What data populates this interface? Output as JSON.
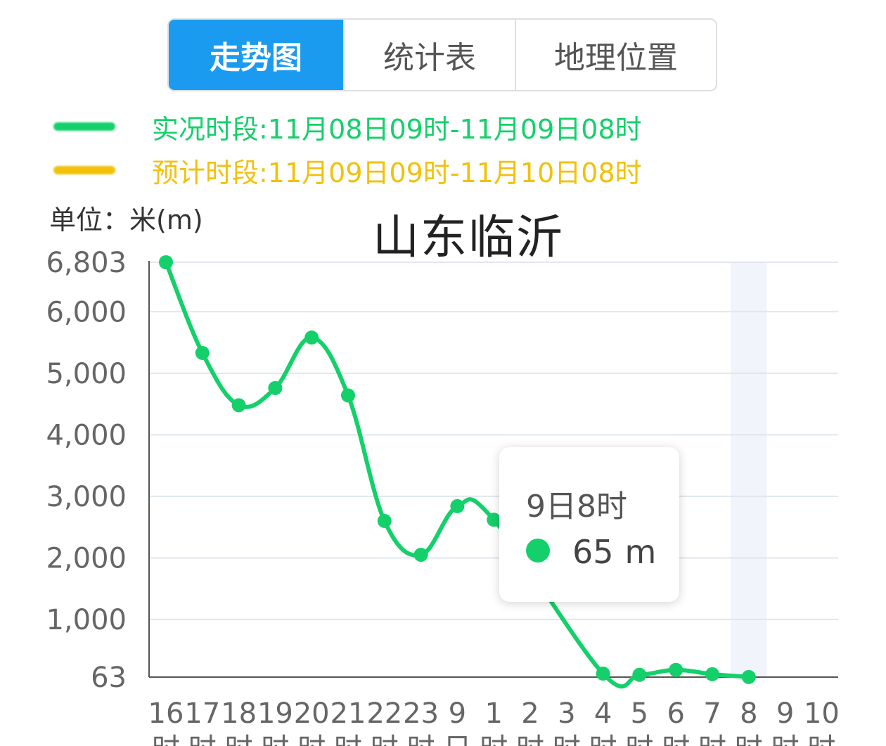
{
  "tabs": [
    {
      "label": "走势图",
      "active": true
    },
    {
      "label": "统计表",
      "active": false
    },
    {
      "label": "地理位置",
      "active": false
    }
  ],
  "legend": {
    "actual": {
      "label": "实况时段:11月08日09时-11月09日08时",
      "color": "#14d06a"
    },
    "forecast": {
      "label": "预计时段:11月09日09时-11月10日08时",
      "color": "#f2c10c"
    }
  },
  "unit_label": "单位：米(m)",
  "tooltip": {
    "time": "9日8时",
    "value": "65",
    "unit": "m"
  },
  "chart_data": {
    "type": "line",
    "title": "山东临沂",
    "ylabel": "单位：米(m)",
    "ylim": [
      63,
      6803
    ],
    "yticks": [
      "6,803",
      "6,000",
      "5,000",
      "4,000",
      "3,000",
      "2,000",
      "1,000",
      "63"
    ],
    "ytick_values": [
      6803,
      6000,
      5000,
      4000,
      3000,
      2000,
      1000,
      63
    ],
    "categories": [
      [
        "16",
        "时"
      ],
      [
        "17",
        "时"
      ],
      [
        "18",
        "时"
      ],
      [
        "19",
        "时"
      ],
      [
        "20",
        "时"
      ],
      [
        "21",
        "时"
      ],
      [
        "22",
        "时"
      ],
      [
        "23",
        "时"
      ],
      [
        "9",
        "日"
      ],
      [
        "1",
        "时"
      ],
      [
        "2",
        "时"
      ],
      [
        "3",
        "时"
      ],
      [
        "4",
        "时"
      ],
      [
        "5",
        "时"
      ],
      [
        "6",
        "时"
      ],
      [
        "7",
        "时"
      ],
      [
        "8",
        "时"
      ],
      [
        "9",
        "时"
      ],
      [
        "10",
        "时"
      ]
    ],
    "grid": true,
    "highlight_index": 16,
    "series": [
      {
        "color": "#14d06a",
        "values": [
          6803,
          5330,
          4480,
          4760,
          5580,
          4640,
          2600,
          2050,
          2840,
          2620,
          null,
          null,
          120,
          100,
          180,
          110,
          65,
          null,
          null
        ]
      }
    ]
  }
}
